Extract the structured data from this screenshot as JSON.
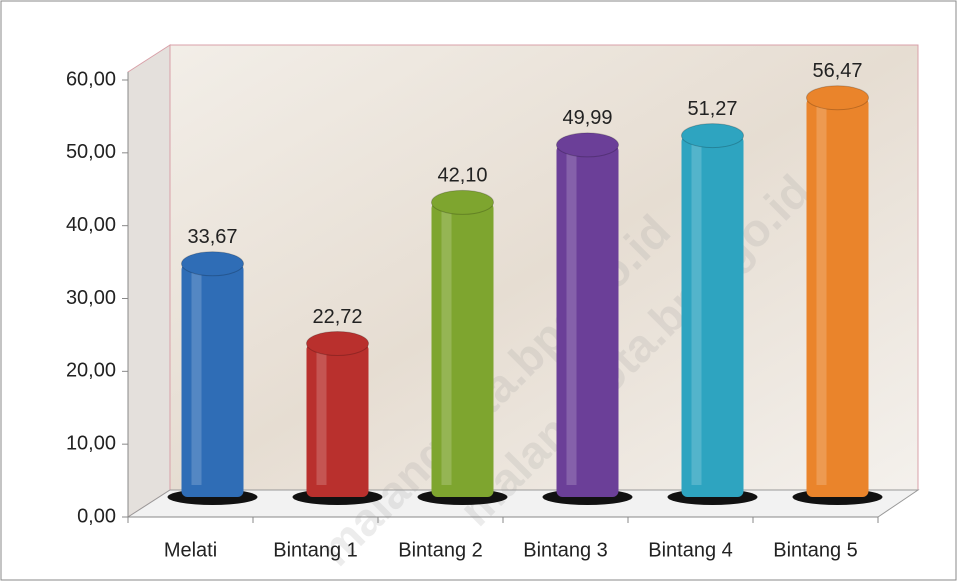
{
  "chart_data": {
    "type": "bar",
    "categories": [
      "Melati",
      "Bintang 1",
      "Bintang 2",
      "Bintang 3",
      "Bintang 4",
      "Bintang 5"
    ],
    "values": [
      33.67,
      22.72,
      42.1,
      49.99,
      51.27,
      56.47
    ],
    "value_labels": [
      "33,67",
      "22,72",
      "42,10",
      "49,99",
      "51,27",
      "56,47"
    ],
    "colors": [
      "#2f6db6",
      "#b9302d",
      "#7ea52f",
      "#6b3f98",
      "#2ea4c0",
      "#ea842b"
    ],
    "ylim": [
      0,
      60
    ],
    "yticks": [
      {
        "value": 0,
        "label": "0,00"
      },
      {
        "value": 10,
        "label": "10,00"
      },
      {
        "value": 20,
        "label": "20,00"
      },
      {
        "value": 30,
        "label": "30,00"
      },
      {
        "value": 40,
        "label": "40,00"
      },
      {
        "value": 50,
        "label": "50,00"
      },
      {
        "value": 60,
        "label": "60,00"
      }
    ],
    "watermark": "malangkota.bps.go.id"
  }
}
